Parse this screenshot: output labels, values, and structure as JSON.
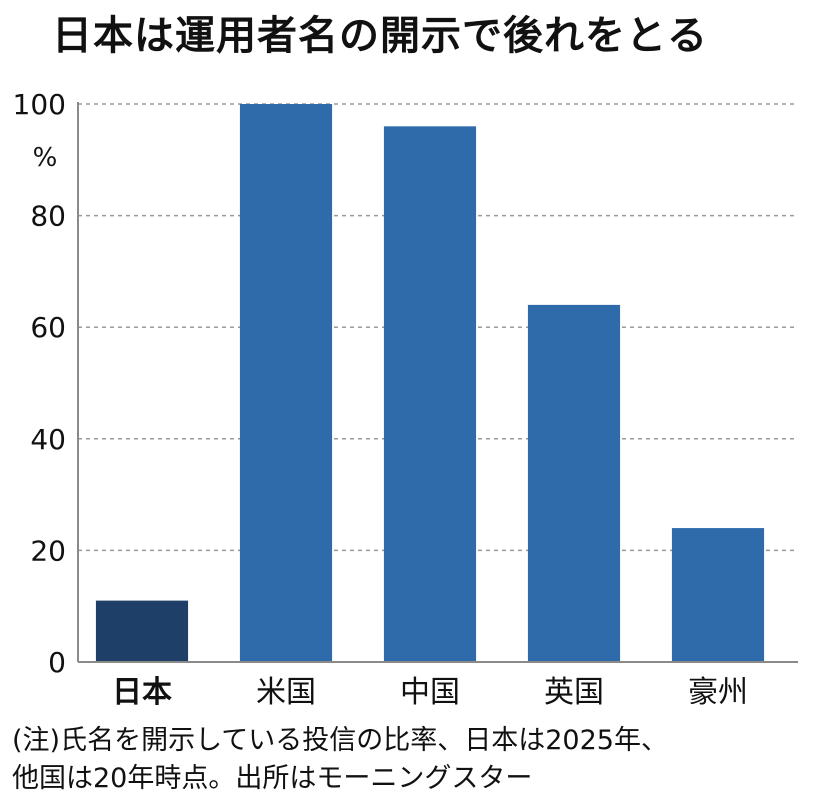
{
  "chart_data": {
    "type": "bar",
    "title": "日本は運用者名の開示で後れをとる",
    "categories": [
      "日本",
      "米国",
      "中国",
      "英国",
      "豪州"
    ],
    "values": [
      11,
      100,
      96,
      64,
      24
    ],
    "highlight_index": 0,
    "ylim": [
      0,
      100
    ],
    "yticks": [
      0,
      20,
      40,
      60,
      80,
      100
    ],
    "unit": "%",
    "grid": true,
    "colors": {
      "bar": "#2f6aab",
      "highlight_bar": "#1e3f67",
      "grid": "#9a9a9a",
      "axis": "#8a8a8a"
    }
  },
  "note": "(注)氏名を開示している投信の比率、日本は2025年、\n他国は20年時点。出所はモーニングスター"
}
